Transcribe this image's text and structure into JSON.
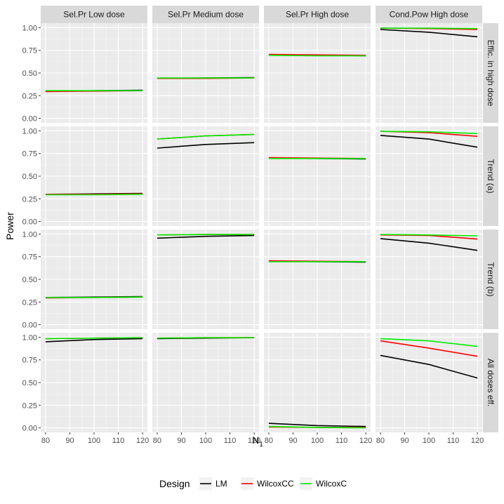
{
  "chart_data": {
    "type": "line",
    "facet_columns": [
      "Sel.Pr Low dose",
      "Sel.Pr Medium dose",
      "Sel.Pr High dose",
      "Cond.Pow High dose"
    ],
    "facet_rows": [
      "Effic. in high dose",
      "Trend (a)",
      "Trend (b)",
      "All doses eff."
    ],
    "xlabel": "N",
    "xlabel_subscript": "1",
    "ylabel": "Power",
    "x_ticks": [
      80,
      90,
      100,
      110,
      120
    ],
    "x_tick_labels": [
      "80",
      "90",
      "100",
      "110",
      "120"
    ],
    "xlim": [
      78,
      122
    ],
    "y_ticks": [
      0.0,
      0.25,
      0.5,
      0.75,
      1.0
    ],
    "y_tick_labels": [
      "0.00",
      "0.25",
      "0.50",
      "0.75",
      "1.00"
    ],
    "ylim": [
      -0.05,
      1.05
    ],
    "x": [
      80,
      100,
      120
    ],
    "legend": {
      "title": "Design",
      "position": "bottom",
      "entries": [
        {
          "name": "LM",
          "color": "#000000"
        },
        {
          "name": "WilcoxCC",
          "color": "#ff0000"
        },
        {
          "name": "WilcoxC",
          "color": "#00ee00"
        }
      ]
    },
    "panels": [
      [
        {
          "LM": [
            0.3,
            0.305,
            0.31
          ],
          "WilcoxCC": [
            0.295,
            0.3,
            0.305
          ],
          "WilcoxC": [
            0.305,
            0.305,
            0.305
          ]
        },
        {
          "LM": [
            0.44,
            0.445,
            0.45
          ],
          "WilcoxCC": [
            0.44,
            0.44,
            0.445
          ],
          "WilcoxC": [
            0.445,
            0.445,
            0.445
          ]
        },
        {
          "LM": [
            0.7,
            0.695,
            0.69
          ],
          "WilcoxCC": [
            0.705,
            0.7,
            0.695
          ],
          "WilcoxC": [
            0.695,
            0.69,
            0.69
          ]
        },
        {
          "LM": [
            0.98,
            0.95,
            0.9
          ],
          "WilcoxCC": [
            0.995,
            0.99,
            0.98
          ],
          "WilcoxC": [
            0.995,
            0.995,
            0.99
          ]
        }
      ],
      [
        {
          "LM": [
            0.3,
            0.305,
            0.31
          ],
          "WilcoxCC": [
            0.3,
            0.3,
            0.305
          ],
          "WilcoxC": [
            0.295,
            0.295,
            0.3
          ]
        },
        {
          "LM": [
            0.81,
            0.85,
            0.87
          ],
          "WilcoxCC": [
            0.91,
            0.945,
            0.96
          ],
          "WilcoxC": [
            0.91,
            0.945,
            0.96
          ]
        },
        {
          "LM": [
            0.7,
            0.695,
            0.69
          ],
          "WilcoxCC": [
            0.705,
            0.7,
            0.695
          ],
          "WilcoxC": [
            0.695,
            0.695,
            0.695
          ]
        },
        {
          "LM": [
            0.95,
            0.91,
            0.82
          ],
          "WilcoxCC": [
            0.995,
            0.98,
            0.94
          ],
          "WilcoxC": [
            0.995,
            0.99,
            0.97
          ]
        }
      ],
      [
        {
          "LM": [
            0.3,
            0.305,
            0.31
          ],
          "WilcoxCC": [
            0.295,
            0.3,
            0.305
          ],
          "WilcoxC": [
            0.3,
            0.3,
            0.305
          ]
        },
        {
          "LM": [
            0.955,
            0.975,
            0.985
          ],
          "WilcoxCC": [
            0.99,
            0.995,
            0.995
          ],
          "WilcoxC": [
            0.99,
            0.995,
            0.995
          ]
        },
        {
          "LM": [
            0.7,
            0.695,
            0.69
          ],
          "WilcoxCC": [
            0.705,
            0.7,
            0.695
          ],
          "WilcoxC": [
            0.695,
            0.695,
            0.695
          ]
        },
        {
          "LM": [
            0.95,
            0.9,
            0.82
          ],
          "WilcoxCC": [
            0.99,
            0.985,
            0.945
          ],
          "WilcoxC": [
            0.995,
            0.99,
            0.98
          ]
        }
      ],
      [
        {
          "LM": [
            0.95,
            0.975,
            0.985
          ],
          "WilcoxCC": [
            0.985,
            0.99,
            0.995
          ],
          "WilcoxC": [
            0.985,
            0.99,
            0.995
          ]
        },
        {
          "LM": [
            0.985,
            0.99,
            0.995
          ],
          "WilcoxCC": [
            0.99,
            0.995,
            0.995
          ],
          "WilcoxC": [
            0.99,
            0.995,
            0.995
          ]
        },
        {
          "LM": [
            0.05,
            0.025,
            0.015
          ],
          "WilcoxCC": [
            0.01,
            0.005,
            0.005
          ],
          "WilcoxC": [
            0.015,
            0.005,
            0.0
          ]
        },
        {
          "LM": [
            0.8,
            0.7,
            0.55
          ],
          "WilcoxCC": [
            0.96,
            0.88,
            0.79
          ],
          "WilcoxC": [
            0.985,
            0.96,
            0.9
          ]
        }
      ]
    ]
  }
}
